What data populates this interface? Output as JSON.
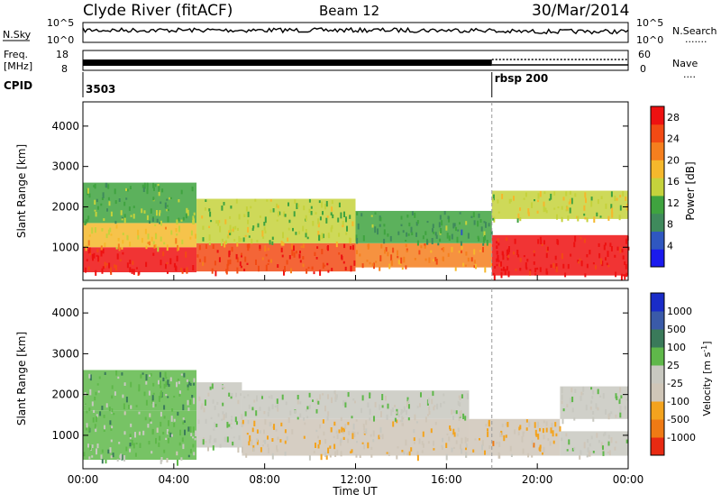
{
  "header": {
    "station": "Clyde River (fitACF)",
    "beam": "Beam 12",
    "date": "30/Mar/2014"
  },
  "noise_panel": {
    "left_label": "N.Sky",
    "left_ticks": [
      "10^5",
      "10^0"
    ],
    "right_ticks": [
      "10^5",
      "10^0"
    ],
    "right_label": "N.Search",
    "right_legend": "......."
  },
  "freq_panel": {
    "left_label_top": "Freq.",
    "left_label_bottom": "[MHz]",
    "left_ticks": [
      "18",
      "8"
    ],
    "right_ticks": [
      "60",
      "0"
    ],
    "right_label": "Nave",
    "right_legend": "...."
  },
  "cpid_panel": {
    "label": "CPID",
    "segments": [
      {
        "name": "3503",
        "start_hour": 0
      },
      {
        "name": "rbsp 200",
        "start_hour": 18
      }
    ]
  },
  "x_axis": {
    "label": "Time UT",
    "tick_labels": [
      "00:00",
      "04:00",
      "08:00",
      "12:00",
      "16:00",
      "20:00",
      "00:00"
    ],
    "range_hours": [
      0,
      24
    ]
  },
  "colors": {
    "power": [
      "#1a1aee",
      "#2f57c0",
      "#3f8a5c",
      "#3fa33f",
      "#c5d23c",
      "#f5b82c",
      "#f57f1e",
      "#f24a14",
      "#ee1111"
    ],
    "velocity": [
      "#1a2cc8",
      "#3a5aa8",
      "#3a7a5a",
      "#5fb84a",
      "#c8c8c0",
      "#cfc6b8",
      "#f3a31e",
      "#ef7a14",
      "#e82a12"
    ]
  },
  "chart_data": [
    {
      "type": "heatmap",
      "title": "",
      "xlabel": "Time UT",
      "ylabel": "Slant Range [km]",
      "xlim": [
        0,
        24
      ],
      "ylim": [
        180,
        4600
      ],
      "y_ticks": [
        "1000",
        "2000",
        "3000",
        "4000"
      ],
      "colorbar": {
        "label": "Power [dB]",
        "ticks": [
          "4",
          "8",
          "12",
          "16",
          "20",
          "24",
          "28"
        ],
        "range": [
          0,
          30
        ]
      },
      "regions": [
        {
          "t": [
            0,
            5
          ],
          "r": [
            380,
            1000
          ],
          "value": 27
        },
        {
          "t": [
            0,
            5
          ],
          "r": [
            1000,
            1600
          ],
          "value": 18
        },
        {
          "t": [
            0,
            5
          ],
          "r": [
            1600,
            2600
          ],
          "value": 12
        },
        {
          "t": [
            5,
            12
          ],
          "r": [
            400,
            1100
          ],
          "value": 26
        },
        {
          "t": [
            5,
            12
          ],
          "r": [
            1100,
            2200
          ],
          "value": 14
        },
        {
          "t": [
            12,
            18
          ],
          "r": [
            500,
            1100
          ],
          "value": 22
        },
        {
          "t": [
            12,
            18
          ],
          "r": [
            1100,
            1900
          ],
          "value": 10
        },
        {
          "t": [
            18,
            24
          ],
          "r": [
            300,
            1300
          ],
          "value": 29
        },
        {
          "t": [
            18,
            24
          ],
          "r": [
            1700,
            2400
          ],
          "value": 16
        }
      ]
    },
    {
      "type": "heatmap",
      "title": "",
      "xlabel": "Time UT",
      "ylabel": "Slant Range [km]",
      "xlim": [
        0,
        24
      ],
      "ylim": [
        180,
        4600
      ],
      "y_ticks": [
        "1000",
        "2000",
        "3000",
        "4000"
      ],
      "colorbar": {
        "label": "Velocity [m s^-1]",
        "ticks": [
          "1000",
          "500",
          "100",
          "25",
          "-25",
          "-100",
          "-500",
          "-1000"
        ],
        "range": [
          -1200,
          1200
        ]
      },
      "regions": [
        {
          "t": [
            0,
            5
          ],
          "r": [
            400,
            1600
          ],
          "value": 150
        },
        {
          "t": [
            0,
            5
          ],
          "r": [
            1600,
            2600
          ],
          "value": 200
        },
        {
          "t": [
            5,
            7
          ],
          "r": [
            700,
            2300
          ],
          "value": 0
        },
        {
          "t": [
            7,
            17
          ],
          "r": [
            500,
            1400
          ],
          "value": -300
        },
        {
          "t": [
            7,
            17
          ],
          "r": [
            1400,
            2100
          ],
          "value": 0
        },
        {
          "t": [
            17,
            21
          ],
          "r": [
            500,
            1400
          ],
          "value": -400
        },
        {
          "t": [
            21,
            24
          ],
          "r": [
            500,
            1100
          ],
          "value": 0
        },
        {
          "t": [
            21,
            24
          ],
          "r": [
            1400,
            2200
          ],
          "value": 0
        }
      ]
    }
  ]
}
